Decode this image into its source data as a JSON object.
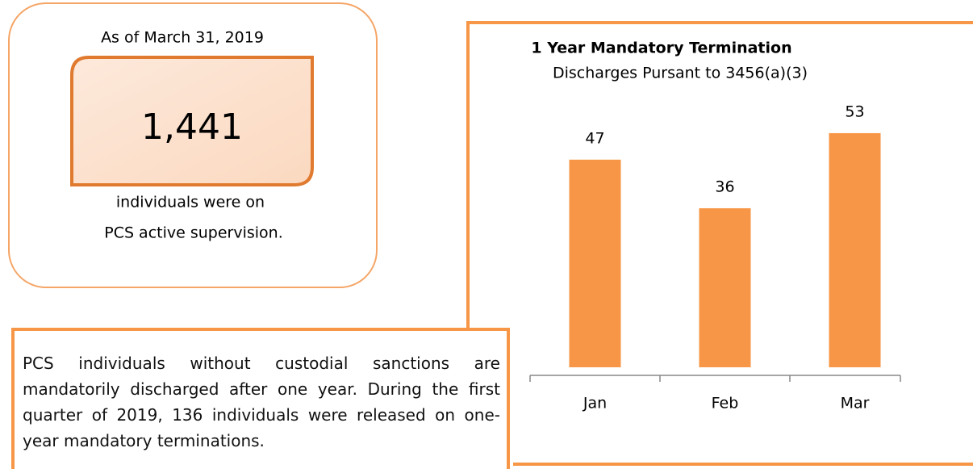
{
  "summary": {
    "date": "As of March 31, 2019",
    "count": "1,441",
    "caption_line1": "individuals were on",
    "caption_line2": "PCS active supervision."
  },
  "note": "PCS individuals without custodial sanctions are mandatorily discharged after one year. During the first quarter of 2019, 136 individuals were released on one-year mandatory terminations.",
  "chart_data": {
    "type": "bar",
    "title": "1 Year Mandatory Termination",
    "subtitle": "Discharges Pursant to 3456(a)(3)",
    "categories": [
      "Jan",
      "Feb",
      "Mar"
    ],
    "values": [
      47,
      36,
      53
    ],
    "color": "#f79646",
    "ylim": [
      0,
      55
    ]
  }
}
